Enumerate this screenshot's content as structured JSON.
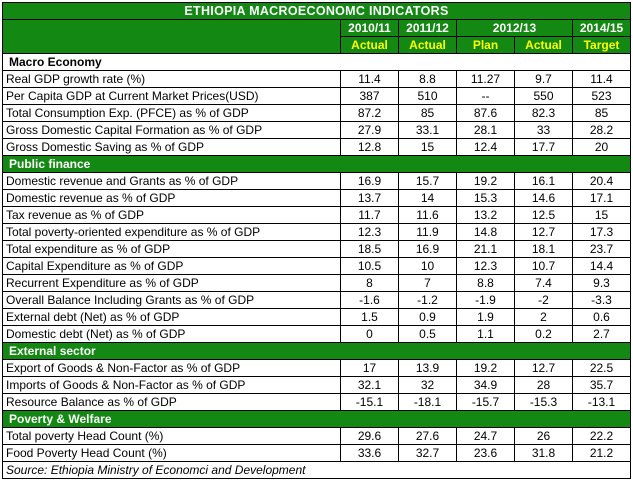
{
  "title": "ETHIOPIA MACROECONOMC INDICATORS",
  "source": "Source: Ethiopia Ministry of Economci and Development",
  "colors": {
    "header_green": "#138813",
    "subheader_text": "#ffff00",
    "header_text": "#ffffff",
    "body_text": "#000000",
    "border": "#000000"
  },
  "header": {
    "years": [
      {
        "label": "2010/11",
        "colspan": 1
      },
      {
        "label": "2011/12",
        "colspan": 1
      },
      {
        "label": "2012/13",
        "colspan": 2
      },
      {
        "label": "2014/15",
        "colspan": 1
      }
    ],
    "subheaders": [
      "Actual",
      "Actual",
      "Plan",
      "Actual",
      "Target"
    ]
  },
  "sections": [
    {
      "name": "Macro Economy",
      "style": "white",
      "rows": [
        {
          "label": "Real GDP growth rate (%)",
          "values": [
            "11.4",
            "8.8",
            "11.27",
            "9.7",
            "11.4"
          ]
        },
        {
          "label": "Per Capita GDP at Current Market Prices(USD)",
          "values": [
            "387",
            "510",
            "--",
            "550",
            "523"
          ]
        },
        {
          "label": "Total Consumption Exp. (PFCE) as % of GDP",
          "values": [
            "87.2",
            "85",
            "87.6",
            "82.3",
            "85"
          ]
        },
        {
          "label": "Gross Domestic Capital Formation as % of GDP",
          "values": [
            "27.9",
            "33.1",
            "28.1",
            "33",
            "28.2"
          ]
        },
        {
          "label": "Gross Domestic Saving as % of GDP",
          "values": [
            "12.8",
            "15",
            "12.4",
            "17.7",
            "20"
          ]
        }
      ]
    },
    {
      "name": "Public finance",
      "style": "green",
      "rows": [
        {
          "label": "Domestic revenue and Grants as % of GDP",
          "values": [
            "16.9",
            "15.7",
            "19.2",
            "16.1",
            "20.4"
          ]
        },
        {
          "label": "Domestic revenue as % of GDP",
          "values": [
            "13.7",
            "14",
            "15.3",
            "14.6",
            "17.1"
          ]
        },
        {
          "label": "Tax revenue as % of GDP",
          "values": [
            "11.7",
            "11.6",
            "13.2",
            "12.5",
            "15"
          ]
        },
        {
          "label": "Total poverty-oriented expenditure as % of GDP",
          "values": [
            "12.3",
            "11.9",
            "14.8",
            "12.7",
            "17.3"
          ]
        },
        {
          "label": "Total expenditure as % of GDP",
          "values": [
            "18.5",
            "16.9",
            "21.1",
            "18.1",
            "23.7"
          ]
        },
        {
          "label": "Capital Expenditure as % of GDP",
          "values": [
            "10.5",
            "10",
            "12.3",
            "10.7",
            "14.4"
          ]
        },
        {
          "label": "Recurrent Expenditure as % of GDP",
          "values": [
            "8",
            "7",
            "8.8",
            "7.4",
            "9.3"
          ]
        },
        {
          "label": "Overall Balance Including Grants as % of GDP",
          "values": [
            "-1.6",
            "-1.2",
            "-1.9",
            "-2",
            "-3.3"
          ]
        },
        {
          "label": "External debt (Net) as % of GDP",
          "values": [
            "1.5",
            "0.9",
            "1.9",
            "2",
            "0.6"
          ]
        },
        {
          "label": "Domestic debt (Net) as % of GDP",
          "values": [
            "0",
            "0.5",
            "1.1",
            "0.2",
            "2.7"
          ]
        }
      ]
    },
    {
      "name": "External sector",
      "style": "green",
      "rows": [
        {
          "label": "Export of Goods & Non-Factor as % of GDP",
          "values": [
            "17",
            "13.9",
            "19.2",
            "12.7",
            "22.5"
          ]
        },
        {
          "label": "Imports of Goods & Non-Factor as % of GDP",
          "values": [
            "32.1",
            "32",
            "34.9",
            "28",
            "35.7"
          ]
        },
        {
          "label": "Resource Balance as % of GDP",
          "values": [
            "-15.1",
            "-18.1",
            "-15.7",
            "-15.3",
            "-13.1"
          ]
        }
      ]
    },
    {
      "name": "Poverty & Welfare",
      "style": "green",
      "rows": [
        {
          "label": "Total poverty Head Count (%)",
          "values": [
            "29.6",
            "27.6",
            "24.7",
            "26",
            "22.2"
          ]
        },
        {
          "label": "Food Poverty Head Count (%)",
          "values": [
            "33.6",
            "32.7",
            "23.6",
            "31.8",
            "21.2"
          ]
        }
      ]
    }
  ]
}
